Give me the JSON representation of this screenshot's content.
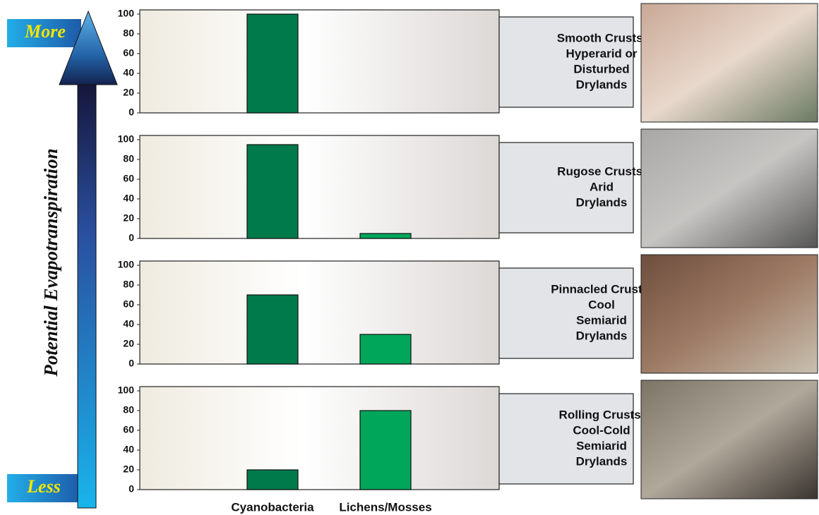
{
  "scale": {
    "label": "Potential Evapotranspiration",
    "top": "More",
    "bottom": "Less"
  },
  "categories": [
    "Cyanobacteria",
    "Lichens/Mosses"
  ],
  "colors": [
    "#007a4a",
    "#00a65a"
  ],
  "chart_data": [
    {
      "type": "bar",
      "title": [
        "Smooth Crusts,",
        "Hyperarid or",
        "Disturbed",
        "Drylands"
      ],
      "values": [
        100,
        0
      ],
      "ylim": [
        0,
        100
      ],
      "yticks": [
        0,
        20,
        40,
        60,
        80,
        100
      ]
    },
    {
      "type": "bar",
      "title": [
        "Rugose Crusts,",
        "Arid",
        "Drylands"
      ],
      "values": [
        95,
        5
      ],
      "ylim": [
        0,
        100
      ],
      "yticks": [
        0,
        20,
        40,
        60,
        80,
        100
      ]
    },
    {
      "type": "bar",
      "title": [
        "Pinnacled Crusts,",
        "Cool",
        "Semiarid",
        "Drylands"
      ],
      "values": [
        70,
        30
      ],
      "ylim": [
        0,
        100
      ],
      "yticks": [
        0,
        20,
        40,
        60,
        80,
        100
      ]
    },
    {
      "type": "bar",
      "title": [
        "Rolling Crusts,",
        "Cool-Cold",
        "Semiarid",
        "Drylands"
      ],
      "values": [
        20,
        80
      ],
      "ylim": [
        0,
        100
      ],
      "yticks": [
        0,
        20,
        40,
        60,
        80,
        100
      ]
    }
  ]
}
